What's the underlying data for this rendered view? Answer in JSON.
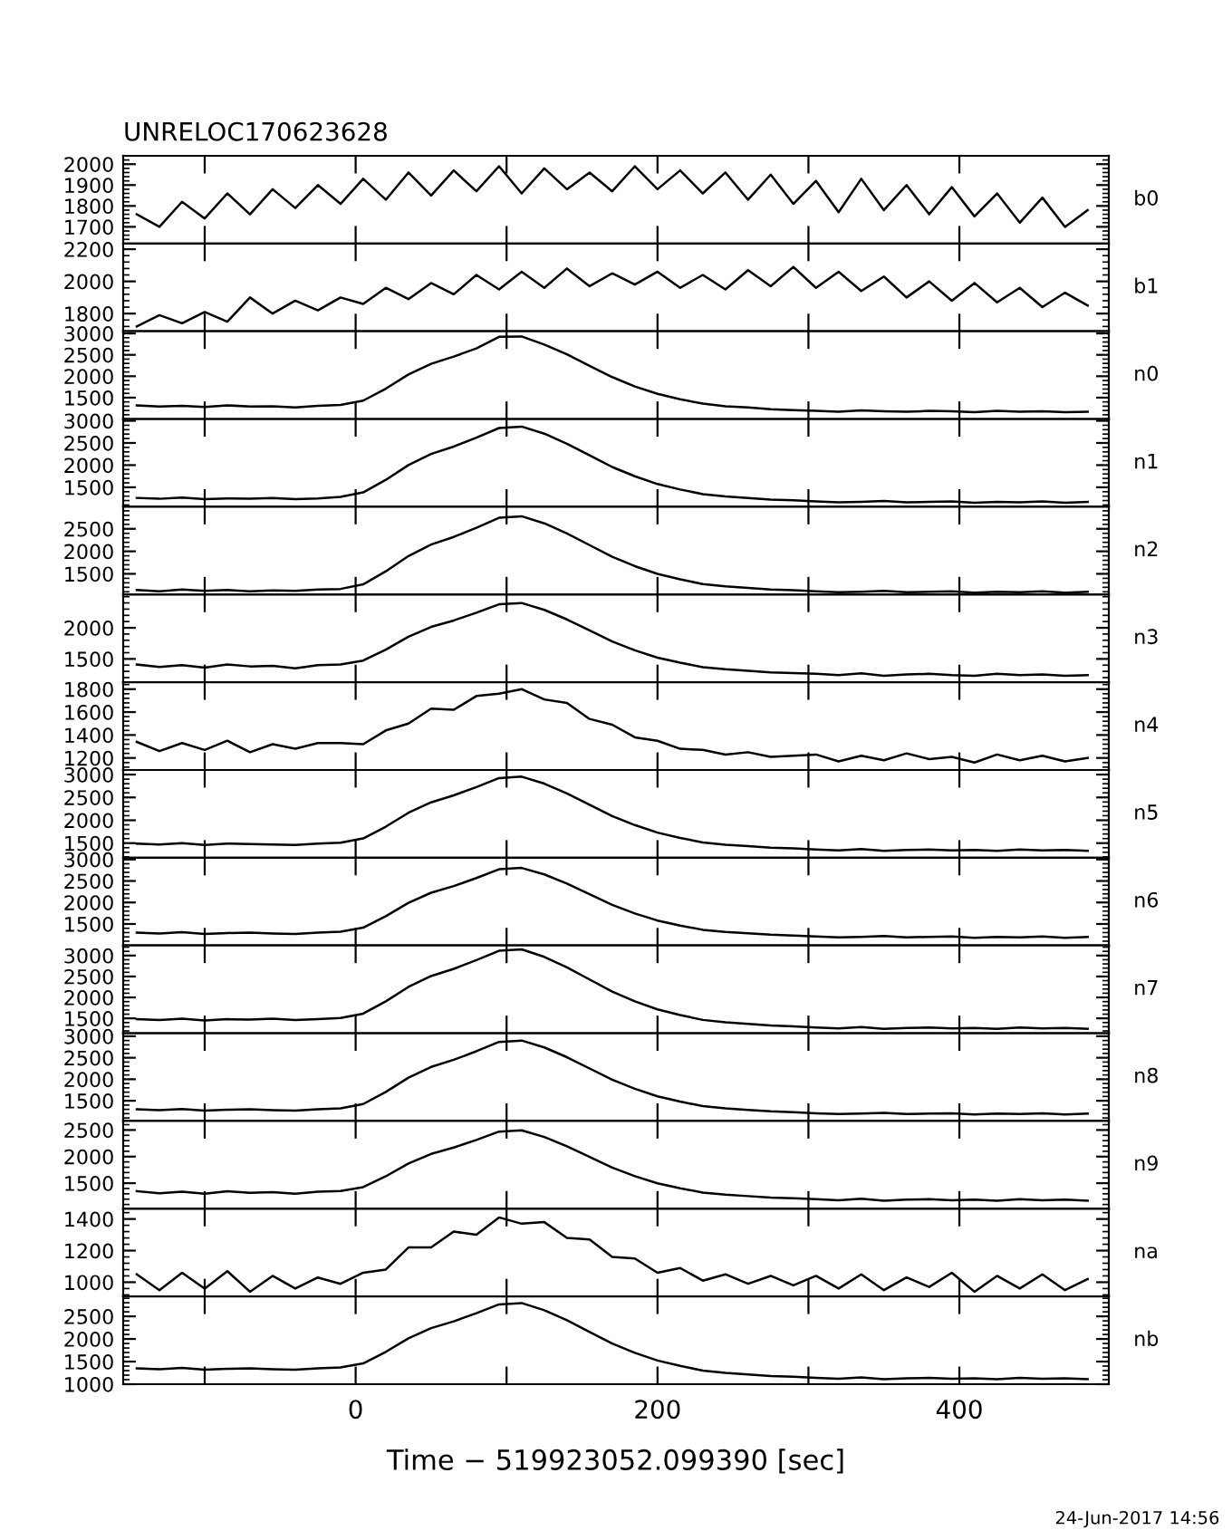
{
  "chart_data": [
    {
      "type": "line",
      "title": "UNRELOC170623628",
      "x": [
        -145,
        -130,
        -115,
        -100,
        -85,
        -70,
        -55,
        -40,
        -25,
        -10,
        5,
        20,
        35,
        50,
        65,
        80,
        95,
        110,
        125,
        140,
        155,
        170,
        185,
        200,
        215,
        230,
        245,
        260,
        275,
        290,
        305,
        320,
        335,
        350,
        365,
        380,
        395,
        410,
        425,
        440,
        455,
        470,
        485
      ],
      "xlim": [
        -154,
        499
      ],
      "xticks": [
        {
          "value": -100,
          "label": null
        },
        {
          "value": 0,
          "label": null
        },
        {
          "value": 100,
          "label": null
        },
        {
          "value": 200,
          "label": null
        },
        {
          "value": 300,
          "label": null
        },
        {
          "value": 400,
          "label": null
        }
      ],
      "ylim": [
        1620,
        2040
      ],
      "yticks": [
        1700,
        1800,
        1900,
        2000
      ],
      "tick_labels": "y",
      "series": [
        {
          "name": "b0",
          "color": "#000000",
          "values": [
            1760,
            1700,
            1820,
            1740,
            1860,
            1760,
            1880,
            1790,
            1900,
            1810,
            1930,
            1830,
            1960,
            1850,
            1970,
            1870,
            1990,
            1860,
            1980,
            1880,
            1960,
            1870,
            1990,
            1880,
            1970,
            1860,
            1960,
            1830,
            1950,
            1810,
            1920,
            1770,
            1930,
            1780,
            1900,
            1760,
            1890,
            1750,
            1860,
            1720,
            1840,
            1700,
            1780
          ]
        }
      ]
    },
    {
      "type": "line",
      "x": [
        -145,
        -130,
        -115,
        -100,
        -85,
        -70,
        -55,
        -40,
        -25,
        -10,
        5,
        20,
        35,
        50,
        65,
        80,
        95,
        110,
        125,
        140,
        155,
        170,
        185,
        200,
        215,
        230,
        245,
        260,
        275,
        290,
        305,
        320,
        335,
        350,
        365,
        380,
        395,
        410,
        425,
        440,
        455,
        470,
        485
      ],
      "xlim": [
        -154,
        499
      ],
      "xticks": [
        {
          "value": -100,
          "label": null
        },
        {
          "value": 0,
          "label": null
        },
        {
          "value": 100,
          "label": null
        },
        {
          "value": 200,
          "label": null
        },
        {
          "value": 300,
          "label": null
        },
        {
          "value": 400,
          "label": null
        }
      ],
      "ylim": [
        1690,
        2235
      ],
      "yticks": [
        1800,
        2000,
        2200
      ],
      "tick_labels": "y",
      "series": [
        {
          "name": "b1",
          "color": "#000000",
          "values": [
            1720,
            1790,
            1740,
            1810,
            1750,
            1900,
            1800,
            1880,
            1820,
            1900,
            1860,
            1960,
            1890,
            1990,
            1920,
            2040,
            1950,
            2060,
            1960,
            2080,
            1970,
            2050,
            1980,
            2060,
            1960,
            2040,
            1950,
            2070,
            1970,
            2090,
            1960,
            2060,
            1940,
            2030,
            1900,
            2000,
            1880,
            1990,
            1870,
            1960,
            1840,
            1930,
            1850
          ]
        }
      ]
    },
    {
      "type": "line",
      "x": [
        -145,
        -130,
        -115,
        -100,
        -85,
        -70,
        -55,
        -40,
        -25,
        -10,
        5,
        20,
        35,
        50,
        65,
        80,
        95,
        110,
        125,
        140,
        155,
        170,
        185,
        200,
        215,
        230,
        245,
        260,
        275,
        290,
        305,
        320,
        335,
        350,
        365,
        380,
        395,
        410,
        425,
        440,
        455,
        470,
        485
      ],
      "xlim": [
        -154,
        499
      ],
      "xticks": [
        {
          "value": -100,
          "label": null
        },
        {
          "value": 0,
          "label": null
        },
        {
          "value": 100,
          "label": null
        },
        {
          "value": 200,
          "label": null
        },
        {
          "value": 300,
          "label": null
        },
        {
          "value": 400,
          "label": null
        }
      ],
      "ylim": [
        1000,
        3050
      ],
      "yticks": [
        1500,
        2000,
        2500,
        3000
      ],
      "tick_labels": "y",
      "series": [
        {
          "name": "n0",
          "color": "#000000",
          "values": [
            1320,
            1290,
            1310,
            1280,
            1320,
            1290,
            1300,
            1270,
            1310,
            1330,
            1430,
            1710,
            2040,
            2290,
            2460,
            2650,
            2920,
            2930,
            2740,
            2510,
            2240,
            1980,
            1760,
            1590,
            1460,
            1360,
            1300,
            1270,
            1230,
            1210,
            1190,
            1170,
            1200,
            1180,
            1170,
            1190,
            1180,
            1160,
            1190,
            1170,
            1180,
            1160,
            1170
          ]
        }
      ]
    },
    {
      "type": "line",
      "x": [
        -145,
        -130,
        -115,
        -100,
        -85,
        -70,
        -55,
        -40,
        -25,
        -10,
        5,
        20,
        35,
        50,
        65,
        80,
        95,
        110,
        125,
        140,
        155,
        170,
        185,
        200,
        215,
        230,
        245,
        260,
        275,
        290,
        305,
        320,
        335,
        350,
        365,
        380,
        395,
        410,
        425,
        440,
        455,
        470,
        485
      ],
      "xlim": [
        -154,
        499
      ],
      "xticks": [
        {
          "value": -100,
          "label": null
        },
        {
          "value": 0,
          "label": null
        },
        {
          "value": 100,
          "label": null
        },
        {
          "value": 200,
          "label": null
        },
        {
          "value": 300,
          "label": null
        },
        {
          "value": 400,
          "label": null
        }
      ],
      "ylim": [
        1060,
        3040
      ],
      "yticks": [
        1500,
        2000,
        2500,
        3000
      ],
      "tick_labels": "y",
      "series": [
        {
          "name": "n1",
          "color": "#000000",
          "values": [
            1260,
            1240,
            1270,
            1230,
            1250,
            1240,
            1260,
            1230,
            1250,
            1283,
            1384,
            1668,
            2002,
            2252,
            2419,
            2619,
            2837,
            2870,
            2710,
            2483,
            2220,
            1958,
            1748,
            1573,
            1450,
            1345,
            1293,
            1258,
            1223,
            1205,
            1180,
            1160,
            1170,
            1190,
            1160,
            1170,
            1180,
            1150,
            1170,
            1160,
            1180,
            1150,
            1170
          ]
        }
      ]
    },
    {
      "type": "line",
      "x": [
        -145,
        -130,
        -115,
        -100,
        -85,
        -70,
        -55,
        -40,
        -25,
        -10,
        5,
        20,
        35,
        50,
        65,
        80,
        95,
        110,
        125,
        140,
        155,
        170,
        185,
        200,
        215,
        230,
        245,
        260,
        275,
        290,
        305,
        320,
        335,
        350,
        365,
        380,
        395,
        410,
        425,
        440,
        455,
        470,
        485
      ],
      "xlim": [
        -154,
        499
      ],
      "xticks": [
        {
          "value": -100,
          "label": null
        },
        {
          "value": 0,
          "label": null
        },
        {
          "value": 100,
          "label": null
        },
        {
          "value": 200,
          "label": null
        },
        {
          "value": 300,
          "label": null
        },
        {
          "value": 400,
          "label": null
        }
      ],
      "ylim": [
        1040,
        2990
      ],
      "yticks": [
        1500,
        2000,
        2500
      ],
      "tick_labels": "y",
      "series": [
        {
          "name": "n2",
          "color": "#000000",
          "values": [
            1140,
            1110,
            1150,
            1120,
            1140,
            1110,
            1130,
            1120,
            1150,
            1164,
            1266,
            1555,
            1895,
            2150,
            2320,
            2524,
            2745,
            2779,
            2622,
            2398,
            2138,
            1879,
            1671,
            1498,
            1377,
            1273,
            1221,
            1187,
            1152,
            1135,
            1110,
            1090,
            1100,
            1120,
            1090,
            1100,
            1110,
            1080,
            1100,
            1090,
            1110,
            1080,
            1100
          ]
        }
      ]
    },
    {
      "type": "line",
      "x": [
        -145,
        -130,
        -115,
        -100,
        -85,
        -70,
        -55,
        -40,
        -25,
        -10,
        5,
        20,
        35,
        50,
        65,
        80,
        95,
        110,
        125,
        140,
        155,
        170,
        185,
        200,
        215,
        230,
        245,
        260,
        275,
        290,
        305,
        320,
        335,
        350,
        365,
        380,
        395,
        410,
        425,
        440,
        455,
        470,
        485
      ],
      "xlim": [
        -154,
        499
      ],
      "xticks": [
        {
          "value": -100,
          "label": null
        },
        {
          "value": 0,
          "label": null
        },
        {
          "value": 100,
          "label": null
        },
        {
          "value": 200,
          "label": null
        },
        {
          "value": 300,
          "label": null
        },
        {
          "value": 400,
          "label": null
        }
      ],
      "ylim": [
        1125,
        2535
      ],
      "yticks": [
        1500,
        2000
      ],
      "tick_labels": "y",
      "series": [
        {
          "name": "n3",
          "color": "#000000",
          "values": [
            1410,
            1370,
            1400,
            1360,
            1410,
            1380,
            1390,
            1350,
            1400,
            1411,
            1473,
            1650,
            1858,
            2014,
            2118,
            2243,
            2378,
            2399,
            2288,
            2135,
            1958,
            1781,
            1639,
            1521,
            1439,
            1368,
            1333,
            1309,
            1285,
            1274,
            1260,
            1240,
            1270,
            1230,
            1250,
            1260,
            1240,
            1230,
            1260,
            1240,
            1250,
            1230,
            1240
          ]
        }
      ]
    },
    {
      "type": "line",
      "x": [
        -145,
        -130,
        -115,
        -100,
        -85,
        -70,
        -55,
        -40,
        -25,
        -10,
        5,
        20,
        35,
        50,
        65,
        80,
        95,
        110,
        125,
        140,
        155,
        170,
        185,
        200,
        215,
        230,
        245,
        260,
        275,
        290,
        305,
        320,
        335,
        350,
        365,
        380,
        395,
        410,
        425,
        440,
        455,
        470,
        485
      ],
      "xlim": [
        -154,
        499
      ],
      "xticks": [
        {
          "value": -100,
          "label": null
        },
        {
          "value": 0,
          "label": null
        },
        {
          "value": 100,
          "label": null
        },
        {
          "value": 200,
          "label": null
        },
        {
          "value": 300,
          "label": null
        },
        {
          "value": 400,
          "label": null
        }
      ],
      "ylim": [
        1095,
        1860
      ],
      "yticks": [
        1200,
        1400,
        1600,
        1800
      ],
      "tick_labels": "y",
      "series": [
        {
          "name": "n4",
          "color": "#000000",
          "values": [
            1340,
            1260,
            1330,
            1270,
            1350,
            1250,
            1320,
            1280,
            1330,
            1330,
            1320,
            1440,
            1500,
            1630,
            1620,
            1740,
            1760,
            1800,
            1710,
            1680,
            1540,
            1490,
            1380,
            1350,
            1280,
            1270,
            1230,
            1250,
            1210,
            1220,
            1230,
            1170,
            1220,
            1180,
            1240,
            1190,
            1210,
            1160,
            1230,
            1180,
            1220,
            1170,
            1200
          ]
        }
      ]
    },
    {
      "type": "line",
      "x": [
        -145,
        -130,
        -115,
        -100,
        -85,
        -70,
        -55,
        -40,
        -25,
        -10,
        5,
        20,
        35,
        50,
        65,
        80,
        95,
        110,
        125,
        140,
        155,
        170,
        185,
        200,
        215,
        230,
        245,
        260,
        275,
        290,
        305,
        320,
        335,
        350,
        365,
        380,
        395,
        410,
        425,
        440,
        455,
        470,
        485
      ],
      "xlim": [
        -154,
        499
      ],
      "xticks": [
        {
          "value": -100,
          "label": null
        },
        {
          "value": 0,
          "label": null
        },
        {
          "value": 100,
          "label": null
        },
        {
          "value": 200,
          "label": null
        },
        {
          "value": 300,
          "label": null
        },
        {
          "value": 400,
          "label": null
        }
      ],
      "ylim": [
        1180,
        3100
      ],
      "yticks": [
        1500,
        2000,
        2500,
        3000
      ],
      "tick_labels": "y",
      "series": [
        {
          "name": "n5",
          "color": "#000000",
          "values": [
            1490,
            1470,
            1500,
            1460,
            1490,
            1480,
            1470,
            1460,
            1490,
            1510,
            1602,
            1860,
            2164,
            2392,
            2544,
            2726,
            2924,
            2954,
            2802,
            2588,
            2340,
            2093,
            1895,
            1730,
            1614,
            1515,
            1466,
            1433,
            1400,
            1383,
            1360,
            1340,
            1370,
            1330,
            1350,
            1360,
            1340,
            1350,
            1330,
            1360,
            1340,
            1350,
            1330
          ]
        }
      ]
    },
    {
      "type": "line",
      "x": [
        -145,
        -130,
        -115,
        -100,
        -85,
        -70,
        -55,
        -40,
        -25,
        -10,
        5,
        20,
        35,
        50,
        65,
        80,
        95,
        110,
        125,
        140,
        155,
        170,
        185,
        200,
        215,
        230,
        245,
        260,
        275,
        290,
        305,
        320,
        335,
        350,
        365,
        380,
        395,
        410,
        425,
        440,
        455,
        470,
        485
      ],
      "xlim": [
        -154,
        499
      ],
      "xticks": [
        {
          "value": -100,
          "label": null
        },
        {
          "value": 0,
          "label": null
        },
        {
          "value": 100,
          "label": null
        },
        {
          "value": 200,
          "label": null
        },
        {
          "value": 300,
          "label": null
        },
        {
          "value": 400,
          "label": null
        }
      ],
      "ylim": [
        1000,
        3040
      ],
      "yticks": [
        1500,
        2000,
        2500,
        3000
      ],
      "tick_labels": "y",
      "series": [
        {
          "name": "n6",
          "color": "#000000",
          "values": [
            1300,
            1280,
            1310,
            1270,
            1290,
            1300,
            1280,
            1270,
            1300,
            1321,
            1415,
            1680,
            1992,
            2226,
            2382,
            2569,
            2772,
            2803,
            2652,
            2438,
            2190,
            1943,
            1745,
            1580,
            1464,
            1365,
            1316,
            1283,
            1250,
            1233,
            1210,
            1190,
            1200,
            1220,
            1190,
            1200,
            1210,
            1180,
            1200,
            1190,
            1210,
            1180,
            1200
          ]
        }
      ]
    },
    {
      "type": "line",
      "x": [
        -145,
        -130,
        -115,
        -100,
        -85,
        -70,
        -55,
        -40,
        -25,
        -10,
        5,
        20,
        35,
        50,
        65,
        80,
        95,
        110,
        125,
        140,
        155,
        170,
        185,
        200,
        215,
        230,
        245,
        260,
        275,
        290,
        305,
        320,
        335,
        350,
        365,
        380,
        395,
        410,
        425,
        440,
        455,
        470,
        485
      ],
      "xlim": [
        -154,
        499
      ],
      "xticks": [
        {
          "value": -100,
          "label": null
        },
        {
          "value": 0,
          "label": null
        },
        {
          "value": 100,
          "label": null
        },
        {
          "value": 200,
          "label": null
        },
        {
          "value": 300,
          "label": null
        },
        {
          "value": 400,
          "label": null
        }
      ],
      "ylim": [
        1145,
        3240
      ],
      "yticks": [
        1500,
        2000,
        2500,
        3000
      ],
      "tick_labels": "y",
      "series": [
        {
          "name": "n7",
          "color": "#000000",
          "values": [
            1480,
            1460,
            1490,
            1450,
            1480,
            1470,
            1490,
            1460,
            1480,
            1510,
            1613,
            1906,
            2251,
            2510,
            2683,
            2890,
            3114,
            3148,
            2968,
            2718,
            2428,
            2139,
            1907,
            1714,
            1579,
            1463,
            1405,
            1367,
            1328,
            1309,
            1280,
            1260,
            1290,
            1250,
            1270,
            1280,
            1260,
            1270,
            1250,
            1280,
            1260,
            1270,
            1250
          ]
        }
      ]
    },
    {
      "type": "line",
      "x": [
        -145,
        -130,
        -115,
        -100,
        -85,
        -70,
        -55,
        -40,
        -25,
        -10,
        5,
        20,
        35,
        50,
        65,
        80,
        95,
        110,
        125,
        140,
        155,
        170,
        185,
        200,
        215,
        230,
        245,
        260,
        275,
        290,
        305,
        320,
        335,
        350,
        365,
        380,
        395,
        410,
        425,
        440,
        455,
        470,
        485
      ],
      "xlim": [
        -154,
        499
      ],
      "xticks": [
        {
          "value": -100,
          "label": null
        },
        {
          "value": 0,
          "label": null
        },
        {
          "value": 100,
          "label": null
        },
        {
          "value": 200,
          "label": null
        },
        {
          "value": 300,
          "label": null
        },
        {
          "value": 400,
          "label": null
        }
      ],
      "ylim": [
        1030,
        3070
      ],
      "yticks": [
        1500,
        2000,
        2500,
        3000
      ],
      "tick_labels": "y",
      "series": [
        {
          "name": "n8",
          "color": "#000000",
          "values": [
            1300,
            1280,
            1310,
            1270,
            1290,
            1300,
            1280,
            1270,
            1300,
            1323,
            1423,
            1705,
            2037,
            2286,
            2452,
            2651,
            2867,
            2900,
            2740,
            2513,
            2250,
            1988,
            1778,
            1603,
            1480,
            1375,
            1323,
            1288,
            1253,
            1235,
            1210,
            1190,
            1200,
            1220,
            1190,
            1200,
            1210,
            1180,
            1200,
            1190,
            1210,
            1180,
            1200
          ]
        }
      ]
    },
    {
      "type": "line",
      "x": [
        -145,
        -130,
        -115,
        -100,
        -85,
        -70,
        -55,
        -40,
        -25,
        -10,
        5,
        20,
        35,
        50,
        65,
        80,
        95,
        110,
        125,
        140,
        155,
        170,
        185,
        200,
        215,
        230,
        245,
        260,
        275,
        290,
        305,
        320,
        335,
        350,
        365,
        380,
        395,
        410,
        425,
        440,
        455,
        470,
        485
      ],
      "xlim": [
        -154,
        499
      ],
      "xticks": [
        {
          "value": -100,
          "label": null
        },
        {
          "value": 0,
          "label": null
        },
        {
          "value": 100,
          "label": null
        },
        {
          "value": 200,
          "label": null
        },
        {
          "value": 300,
          "label": null
        },
        {
          "value": 400,
          "label": null
        }
      ],
      "ylim": [
        1020,
        2670
      ],
      "yticks": [
        1500,
        2000,
        2500
      ],
      "tick_labels": "y",
      "series": [
        {
          "name": "n9",
          "color": "#000000",
          "values": [
            1350,
            1310,
            1340,
            1300,
            1350,
            1320,
            1330,
            1300,
            1340,
            1354,
            1426,
            1630,
            1870,
            2050,
            2170,
            2314,
            2470,
            2494,
            2369,
            2195,
            1994,
            1793,
            1632,
            1498,
            1404,
            1324,
            1284,
            1257,
            1230,
            1217,
            1200,
            1180,
            1210,
            1170,
            1190,
            1200,
            1180,
            1190,
            1170,
            1200,
            1180,
            1190,
            1170
          ]
        }
      ]
    },
    {
      "type": "line",
      "x": [
        -145,
        -130,
        -115,
        -100,
        -85,
        -70,
        -55,
        -40,
        -25,
        -10,
        5,
        20,
        35,
        50,
        65,
        80,
        95,
        110,
        125,
        140,
        155,
        170,
        185,
        200,
        215,
        230,
        245,
        260,
        275,
        290,
        305,
        320,
        335,
        350,
        365,
        380,
        395,
        410,
        425,
        440,
        455,
        470,
        485
      ],
      "xlim": [
        -154,
        499
      ],
      "xticks": [
        {
          "value": -100,
          "label": null
        },
        {
          "value": 0,
          "label": null
        },
        {
          "value": 100,
          "label": null
        },
        {
          "value": 200,
          "label": null
        },
        {
          "value": 300,
          "label": null
        },
        {
          "value": 400,
          "label": null
        }
      ],
      "ylim": [
        910,
        1465
      ],
      "yticks": [
        1000,
        1200,
        1400
      ],
      "tick_labels": "y",
      "series": [
        {
          "name": "na",
          "color": "#000000",
          "values": [
            1050,
            950,
            1060,
            960,
            1070,
            940,
            1040,
            960,
            1030,
            990,
            1060,
            1080,
            1220,
            1220,
            1320,
            1300,
            1410,
            1370,
            1380,
            1280,
            1270,
            1160,
            1150,
            1060,
            1090,
            1010,
            1050,
            990,
            1040,
            980,
            1040,
            960,
            1050,
            950,
            1030,
            970,
            1060,
            940,
            1040,
            960,
            1050,
            950,
            1020
          ]
        }
      ]
    },
    {
      "type": "line",
      "x": [
        -145,
        -130,
        -115,
        -100,
        -85,
        -70,
        -55,
        -40,
        -25,
        -10,
        5,
        20,
        35,
        50,
        65,
        80,
        95,
        110,
        125,
        140,
        155,
        170,
        185,
        200,
        215,
        230,
        245,
        260,
        275,
        290,
        305,
        320,
        335,
        350,
        365,
        380,
        395,
        410,
        425,
        440,
        455,
        470,
        485
      ],
      "xlim": [
        -154,
        499
      ],
      "xticks": [
        {
          "value": -100,
          "label": null
        },
        0,
        {
          "value": 100,
          "label": null
        },
        200,
        {
          "value": 300,
          "label": null
        },
        400
      ],
      "ylim": [
        1000,
        2940
      ],
      "yticks": [
        1000,
        1500,
        2000,
        2500
      ],
      "xlabel": "Time − 519923052.099390 [sec]",
      "annotations": [
        "24-Jun-2017 14:56"
      ],
      "series": [
        {
          "name": "nb",
          "color": "#000000",
          "values": [
            1350,
            1330,
            1360,
            1320,
            1340,
            1350,
            1330,
            1320,
            1350,
            1370,
            1460,
            1715,
            2015,
            2240,
            2390,
            2570,
            2765,
            2795,
            2635,
            2413,
            2156,
            1900,
            1694,
            1523,
            1404,
            1301,
            1250,
            1216,
            1181,
            1164,
            1140,
            1120,
            1150,
            1110,
            1130,
            1140,
            1120,
            1130,
            1110,
            1140,
            1120,
            1130,
            1110
          ]
        }
      ]
    }
  ]
}
